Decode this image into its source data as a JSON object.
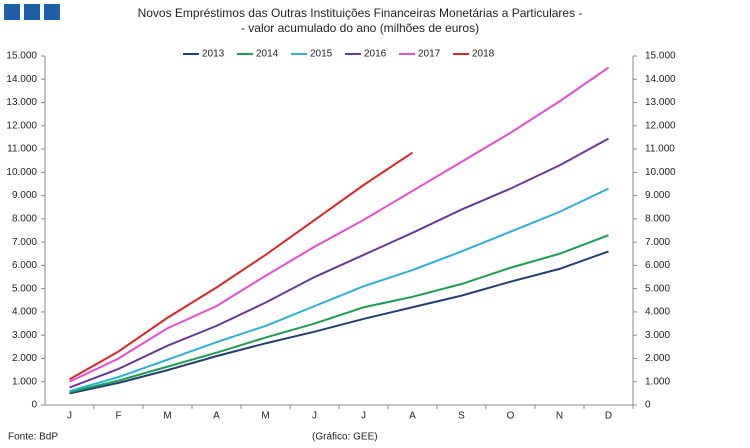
{
  "chart_data": {
    "type": "line",
    "title": "Novos Empréstimos das Outras Instituições Financeiras Monetárias a Particulares -",
    "subtitle": "- valor acumulado do ano (milhões de euros)",
    "categories": [
      "J",
      "F",
      "M",
      "A",
      "M",
      "J",
      "J",
      "A",
      "S",
      "O",
      "N",
      "D"
    ],
    "series": [
      {
        "name": "2013",
        "color": "#243f73",
        "values": [
          500,
          950,
          1500,
          2100,
          2650,
          3150,
          3700,
          4200,
          4700,
          5300,
          5850,
          6600
        ]
      },
      {
        "name": "2014",
        "color": "#1a9e50",
        "values": [
          550,
          1050,
          1650,
          2250,
          2900,
          3500,
          4200,
          4650,
          5200,
          5900,
          6500,
          7300
        ]
      },
      {
        "name": "2015",
        "color": "#2bb0d8",
        "values": [
          600,
          1200,
          1950,
          2700,
          3400,
          4250,
          5100,
          5800,
          6600,
          7450,
          8300,
          9300
        ]
      },
      {
        "name": "2016",
        "color": "#6a3a93",
        "values": [
          750,
          1550,
          2550,
          3400,
          4400,
          5500,
          6450,
          7400,
          8400,
          9300,
          10300,
          11450
        ]
      },
      {
        "name": "2017",
        "color": "#e24fcf",
        "values": [
          1000,
          2000,
          3300,
          4250,
          5550,
          6800,
          7950,
          9200,
          10450,
          11700,
          13050,
          14500
        ]
      },
      {
        "name": "2018",
        "color": "#d9262a",
        "values": [
          1100,
          2300,
          3750,
          5050,
          6450,
          7950,
          9450,
          10850,
          null,
          null,
          null,
          null
        ]
      }
    ],
    "ylim": [
      0,
      15000
    ],
    "yticks": [
      0,
      {
        "value": 1000,
        "label": "1.000"
      },
      {
        "value": 2000,
        "label": "2.000"
      },
      {
        "value": 3000,
        "label": "3.000"
      },
      {
        "value": 4000,
        "label": "4.000"
      },
      {
        "value": 5000,
        "label": "5.000"
      },
      {
        "value": 6000,
        "label": "6.000"
      },
      {
        "value": 7000,
        "label": "7.000"
      },
      {
        "value": 8000,
        "label": "8.000"
      },
      {
        "value": 9000,
        "label": "9.000"
      },
      {
        "value": 10000,
        "label": "10.000"
      },
      {
        "value": 11000,
        "label": "11.000"
      },
      {
        "value": 12000,
        "label": "12.000"
      },
      {
        "value": 13000,
        "label": "13.000"
      },
      {
        "value": 14000,
        "label": "14.000"
      },
      {
        "value": 15000,
        "label": "15.000"
      }
    ],
    "y2lim": [
      0,
      15000
    ],
    "y2ticks": [
      0,
      {
        "value": 1000,
        "label": "1.000"
      },
      {
        "value": 2000,
        "label": "2.000"
      },
      {
        "value": 3000,
        "label": "3.000"
      },
      {
        "value": 4000,
        "label": "4.000"
      },
      {
        "value": 5000,
        "label": "5.000"
      },
      {
        "value": 6000,
        "label": "6.000"
      },
      {
        "value": 7000,
        "label": "7.000"
      },
      {
        "value": 8000,
        "label": "8.000"
      },
      {
        "value": 9000,
        "label": "9.000"
      },
      {
        "value": 10000,
        "label": "10.000"
      },
      {
        "value": 11000,
        "label": "11.000"
      },
      {
        "value": 12000,
        "label": "12.000"
      },
      {
        "value": 13000,
        "label": "13.000"
      },
      {
        "value": 14000,
        "label": "14.000"
      },
      {
        "value": 15000,
        "label": "15.000"
      }
    ],
    "grid": false,
    "source": "Fonte: BdP",
    "credit": "(Gráfico: GEE)"
  }
}
